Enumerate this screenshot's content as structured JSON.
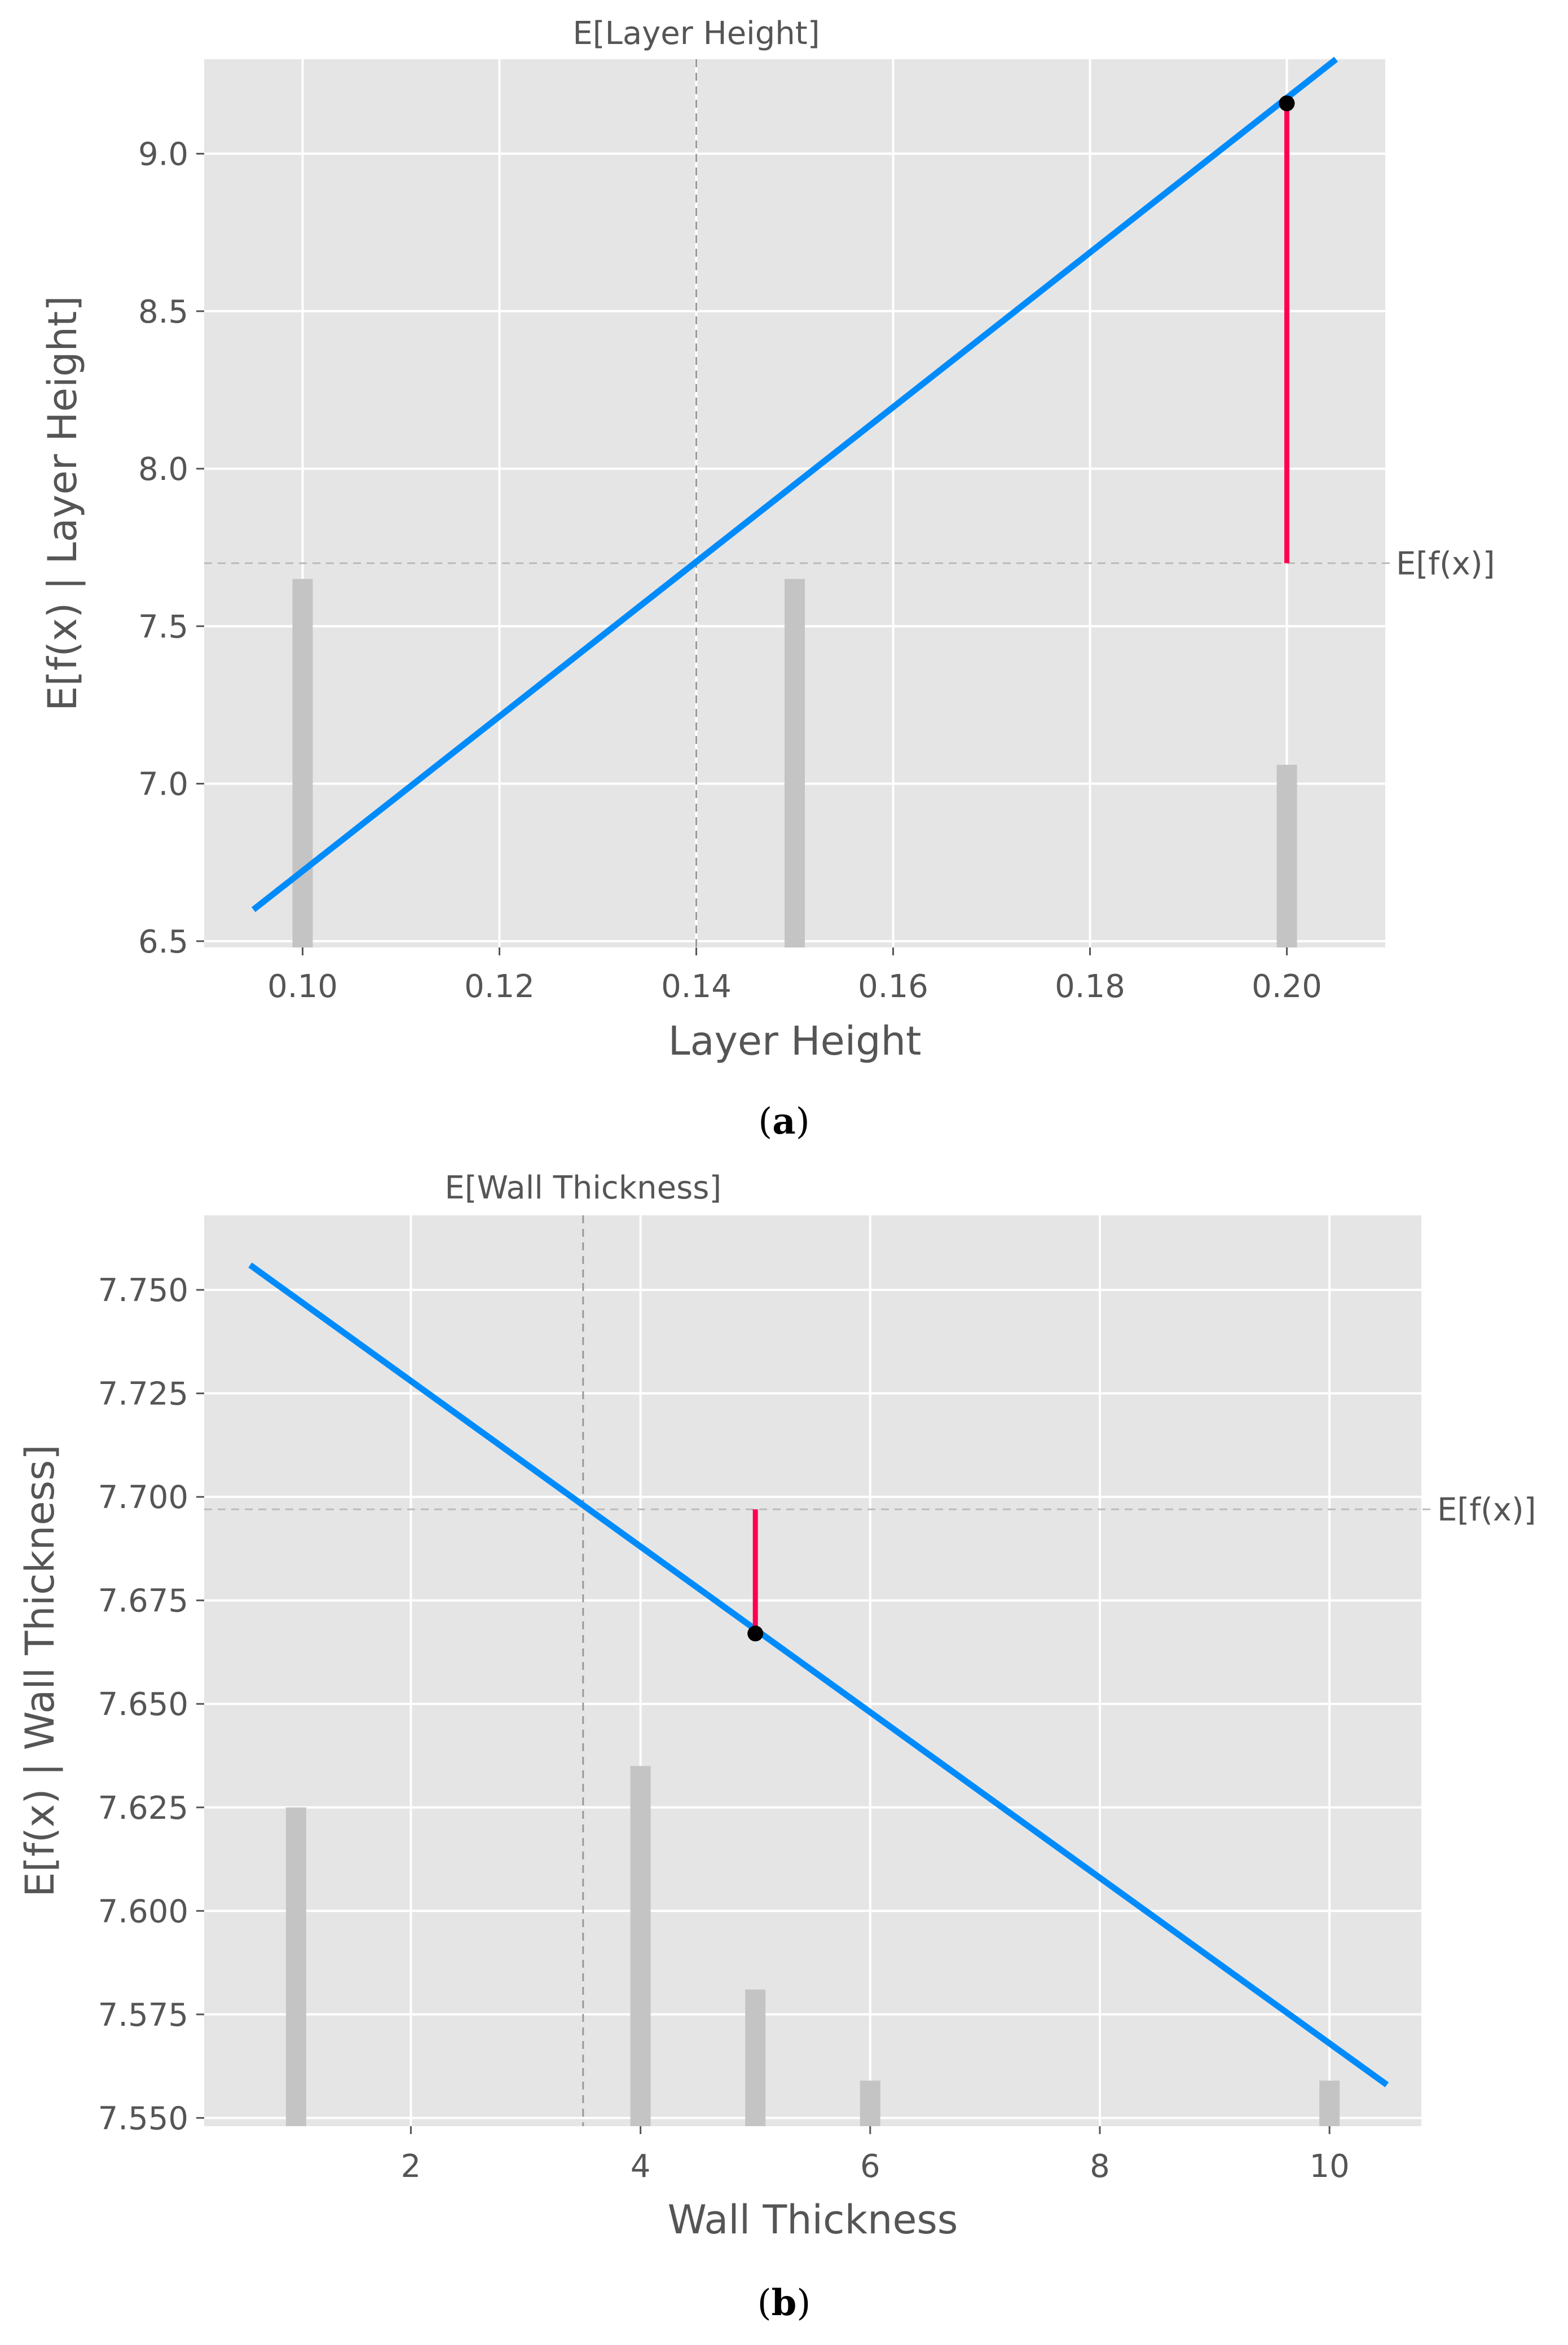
{
  "colors": {
    "plot_bg": "#e5e5e5",
    "grid": "#ffffff",
    "line": "#008bfb",
    "contribution": "#ff0051",
    "histogram": "#c4c4c4",
    "reference": "#bbbbbb",
    "point": "#000000"
  },
  "chart_data": [
    {
      "type": "line",
      "caption": {
        "open": "(",
        "letter": "a",
        "close": ")"
      },
      "title": "",
      "xlabel": "Layer Height",
      "ylabel": "E[f(x) | Layer Height]",
      "xlim": [
        0.09,
        0.21
      ],
      "ylim": [
        6.48,
        9.3
      ],
      "xticks": [
        0.1,
        0.12,
        0.14,
        0.16,
        0.18,
        0.2
      ],
      "xtick_labels": [
        "0.10",
        "0.12",
        "0.14",
        "0.16",
        "0.18",
        "0.20"
      ],
      "yticks": [
        6.5,
        7.0,
        7.5,
        8.0,
        8.5,
        9.0
      ],
      "ytick_labels": [
        "6.5",
        "7.0",
        "7.5",
        "8.0",
        "8.5",
        "9.0"
      ],
      "grid": true,
      "series": [
        {
          "x": [
            0.095,
            0.205
          ],
          "y": [
            6.6,
            9.3
          ]
        }
      ],
      "expected_feature": {
        "label": "E[Layer Height]",
        "value": 0.14
      },
      "expected_output": {
        "label": "E[f(x)]",
        "value": 7.7
      },
      "instance": {
        "x": 0.2,
        "y": 9.16
      },
      "histogram": [
        {
          "x": 0.1,
          "top": 7.65
        },
        {
          "x": 0.15,
          "top": 7.65
        },
        {
          "x": 0.2,
          "top": 7.06
        }
      ]
    },
    {
      "type": "line",
      "caption": {
        "open": "(",
        "letter": "b",
        "close": ")"
      },
      "title": "",
      "xlabel": "Wall Thickness",
      "ylabel": "E[f(x) | Wall Thickness]",
      "xlim": [
        0.2,
        10.8
      ],
      "ylim": [
        7.548,
        7.768
      ],
      "xticks": [
        2,
        4,
        6,
        8,
        10
      ],
      "xtick_labels": [
        "2",
        "4",
        "6",
        "8",
        "10"
      ],
      "yticks": [
        7.55,
        7.575,
        7.6,
        7.625,
        7.65,
        7.675,
        7.7,
        7.725,
        7.75
      ],
      "ytick_labels": [
        "7.550",
        "7.575",
        "7.600",
        "7.625",
        "7.650",
        "7.675",
        "7.700",
        "7.725",
        "7.750"
      ],
      "grid": true,
      "series": [
        {
          "x": [
            0.6,
            10.5
          ],
          "y": [
            7.756,
            7.558
          ]
        }
      ],
      "expected_feature": {
        "label": "E[Wall Thickness]",
        "value": 3.5
      },
      "expected_output": {
        "label": "E[f(x)]",
        "value": 7.697
      },
      "instance": {
        "x": 5.0,
        "y": 7.667
      },
      "histogram": [
        {
          "x": 1,
          "top": 7.625
        },
        {
          "x": 4,
          "top": 7.635
        },
        {
          "x": 5,
          "top": 7.581
        },
        {
          "x": 6,
          "top": 7.559
        },
        {
          "x": 10,
          "top": 7.559
        }
      ]
    }
  ]
}
